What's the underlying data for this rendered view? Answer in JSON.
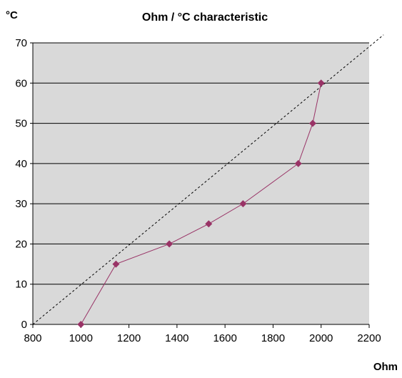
{
  "chart_data": {
    "type": "line",
    "title": "Ohm / °C characteristic",
    "xlabel": "Ohm",
    "ylabel": "°C",
    "xlim": [
      800,
      2200
    ],
    "ylim": [
      0,
      70
    ],
    "xticks": [
      800,
      1000,
      1200,
      1400,
      1600,
      1800,
      2000,
      2200
    ],
    "yticks": [
      0,
      10,
      20,
      30,
      40,
      50,
      60,
      70
    ],
    "grid": {
      "horizontal": true,
      "vertical": false
    },
    "legend": "none",
    "colors": {
      "plot_background": "#d9d9d9",
      "series": "#993366",
      "grid": "#000000",
      "reference_line": "#000000"
    },
    "series": [
      {
        "x": [
          1000,
          1146,
          1368,
          1532,
          1675,
          1905,
          1965,
          2000
        ],
        "y": [
          0,
          15,
          20,
          25,
          30,
          40,
          50,
          60
        ],
        "marker": "diamond"
      }
    ],
    "reference_line": {
      "style": "dashed",
      "x": [
        800,
        2260
      ],
      "y": [
        0,
        72
      ]
    }
  }
}
